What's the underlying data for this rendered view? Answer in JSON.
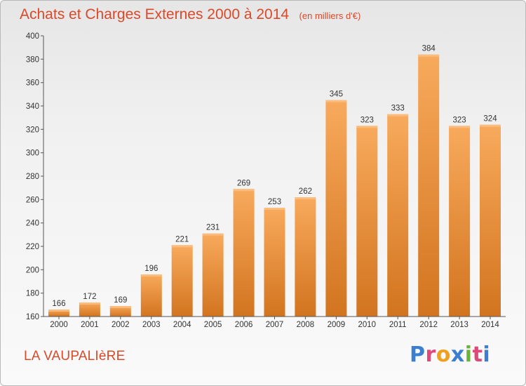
{
  "title": "Achats et Charges Externes 2000 à 2014",
  "subtitle": "(en milliers d'€)",
  "place": "LA VAUPALIèRE",
  "logo": {
    "letters": [
      "P",
      "r",
      "o",
      "x",
      "i",
      "t",
      "i"
    ],
    "colors": [
      "#3b7fd1",
      "#e0477a",
      "#f0a020",
      "#3b7fd1",
      "#6bb23a",
      "#e0477a",
      "#3b7fd1"
    ]
  },
  "colors": {
    "bar_top": "#f8aa5c",
    "bar_bottom": "#d2741f",
    "title": "#d9492a"
  },
  "chart_data": {
    "type": "bar",
    "title": "Achats et Charges Externes 2000 à 2014",
    "subtitle": "(en milliers d'€)",
    "categories": [
      "2000",
      "2001",
      "2002",
      "2003",
      "2004",
      "2005",
      "2006",
      "2007",
      "2008",
      "2009",
      "2010",
      "2011",
      "2012",
      "2013",
      "2014"
    ],
    "values": [
      166,
      172,
      169,
      196,
      221,
      231,
      269,
      253,
      262,
      345,
      323,
      333,
      384,
      323,
      324
    ],
    "data_labels": [
      "166",
      "172",
      "169",
      "196",
      "221",
      "231",
      "269",
      "253",
      "262",
      "345",
      "323",
      "333",
      "384",
      "323",
      "324"
    ],
    "ylim": [
      160,
      400
    ],
    "yticks": [
      160,
      180,
      200,
      220,
      240,
      260,
      280,
      300,
      320,
      340,
      360,
      380,
      400
    ],
    "ytick_labels": [
      "160",
      "180",
      "200",
      "220",
      "240",
      "260",
      "280",
      "300",
      "320",
      "340",
      "360",
      "380",
      "400"
    ],
    "xlabel": "",
    "ylabel": "",
    "grid": false,
    "legend": "none"
  }
}
